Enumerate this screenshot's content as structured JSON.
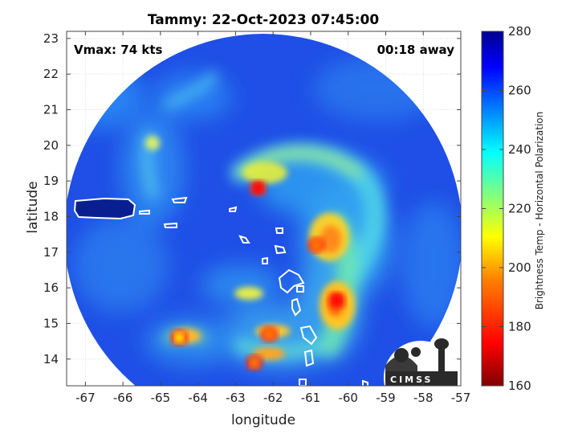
{
  "title": "Tammy: 22-Oct-2023 07:45:00",
  "vmax_label": "Vmax: 74 kts",
  "time_label": "00:18 away",
  "x_axis": {
    "label": "longitude",
    "ticks": [
      -67,
      -66,
      -65,
      -64,
      -63,
      -62,
      -61,
      -60,
      -59,
      -58,
      -57
    ],
    "range": [
      -67.5,
      -57
    ]
  },
  "y_axis": {
    "label": "latitude",
    "ticks": [
      14,
      15,
      16,
      17,
      18,
      19,
      20,
      21,
      22,
      23
    ],
    "range": [
      13.25,
      23.2
    ]
  },
  "colorbar": {
    "label": "Brightness Temp - Horizontal Polarization",
    "ticks": [
      160,
      180,
      200,
      220,
      240,
      260,
      280
    ],
    "range": [
      160,
      280
    ],
    "colormap": "jet",
    "stops": [
      "#800000",
      "#ff0000",
      "#ff8000",
      "#ffff00",
      "#80ff80",
      "#00ffff",
      "#0080ff",
      "#0000ff",
      "#00008f"
    ]
  },
  "logo_text": "CIMSS",
  "colors": {
    "ocean_background": "#1f4fe6",
    "disk_edge": "#2a6bf0",
    "coastline": "#ffffff"
  },
  "features": [
    {
      "name": "eyewall-core-south",
      "lon": -60.3,
      "lat": 15.65,
      "tb": 175
    },
    {
      "name": "band-north-core",
      "lon": -62.4,
      "lat": 18.8,
      "tb": 180
    },
    {
      "name": "band-east-core",
      "lon": -60.85,
      "lat": 17.2,
      "tb": 185
    },
    {
      "name": "island-band-cell-1",
      "lon": -62.5,
      "lat": 13.9,
      "tb": 185
    },
    {
      "name": "island-band-cell-2",
      "lon": -62.1,
      "lat": 14.7,
      "tb": 195
    },
    {
      "name": "western-cell",
      "lon": -64.5,
      "lat": 14.6,
      "tb": 205
    }
  ]
}
